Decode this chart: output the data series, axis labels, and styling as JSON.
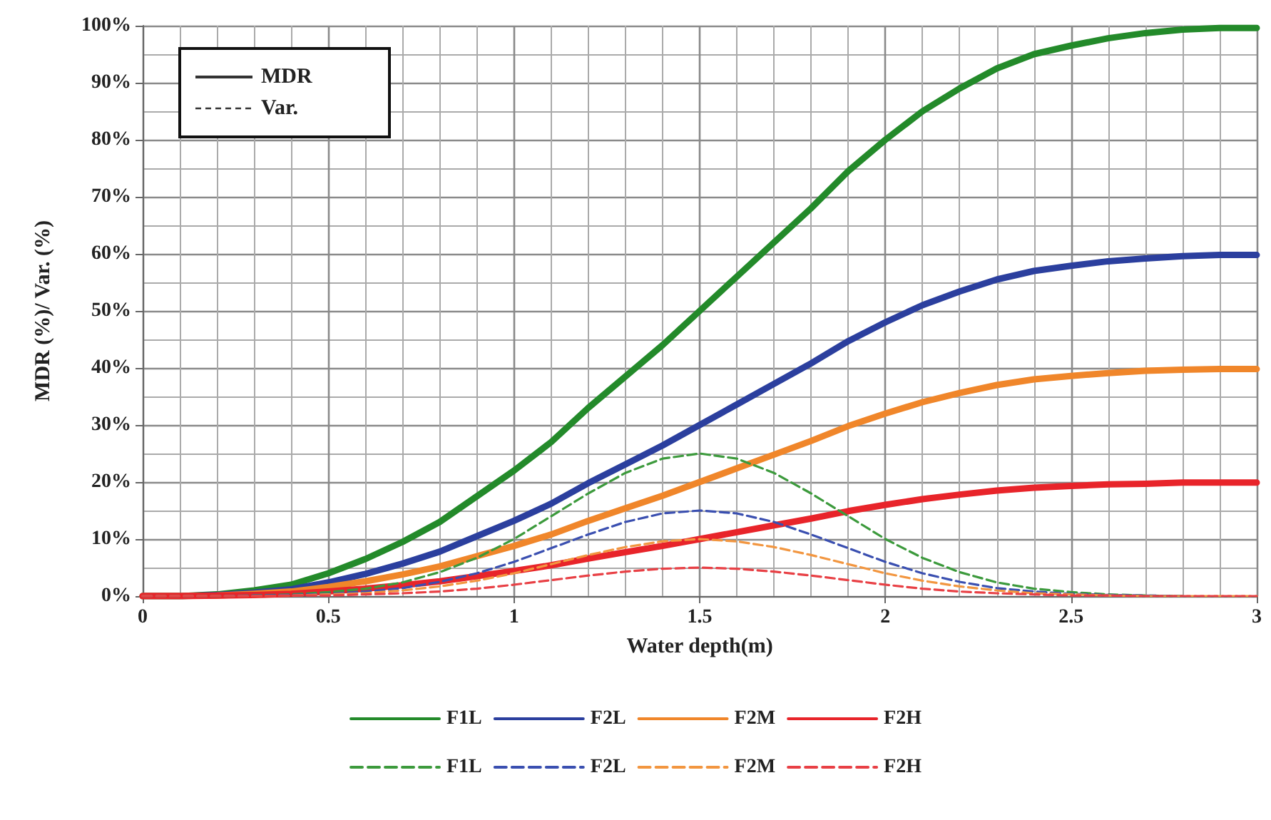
{
  "chart_data": {
    "type": "line",
    "xlabel": "Water depth(m)",
    "ylabel": "MDR (%)/ Var. (%)",
    "annotations": [
      "MDR",
      "Var."
    ],
    "x": [
      0,
      0.1,
      0.2,
      0.3,
      0.4,
      0.5,
      0.6,
      0.7,
      0.8,
      0.9,
      1,
      1.1,
      1.2,
      1.3,
      1.4,
      1.5,
      1.6,
      1.7,
      1.8,
      1.9,
      2,
      2.1,
      2.2,
      2.3,
      2.4,
      2.5,
      2.6,
      2.7,
      2.8,
      2.9,
      3
    ],
    "series": [
      {
        "name": "F1L",
        "color": "#238a2a",
        "line_style": "solid",
        "values": [
          0,
          0,
          0.3,
          1,
          2,
          4,
          6.5,
          9.5,
          13,
          17.5,
          22,
          27,
          33,
          38.5,
          44,
          50,
          56,
          62,
          68,
          74.5,
          80,
          85,
          89,
          92.5,
          95,
          96.5,
          97.8,
          98.7,
          99.3,
          99.6,
          99.6
        ]
      },
      {
        "name": "F2L",
        "color": "#2b3f9e",
        "line_style": "solid",
        "values": [
          0,
          0,
          0.2,
          0.6,
          1.2,
          2.4,
          3.9,
          5.7,
          7.8,
          10.5,
          13.2,
          16.2,
          19.8,
          23.1,
          26.4,
          30,
          33.6,
          37.2,
          40.8,
          44.7,
          48,
          51,
          53.4,
          55.5,
          57,
          57.9,
          58.7,
          59.2,
          59.6,
          59.8,
          59.8
        ]
      },
      {
        "name": "F2M",
        "color": "#f0862a",
        "line_style": "solid",
        "values": [
          0,
          0,
          0.1,
          0.4,
          0.8,
          1.6,
          2.6,
          3.8,
          5.2,
          7,
          8.8,
          10.8,
          13.2,
          15.4,
          17.6,
          20,
          22.4,
          24.8,
          27.2,
          29.8,
          32,
          34,
          35.6,
          37,
          38,
          38.6,
          39.1,
          39.5,
          39.7,
          39.8,
          39.8
        ]
      },
      {
        "name": "F2H",
        "color": "#e8242a",
        "line_style": "solid",
        "values": [
          0,
          0,
          0.1,
          0.2,
          0.4,
          0.8,
          1.3,
          1.9,
          2.6,
          3.5,
          4.4,
          5.4,
          6.6,
          7.7,
          8.8,
          10,
          11.2,
          12.4,
          13.6,
          14.9,
          16,
          17,
          17.8,
          18.5,
          19,
          19.3,
          19.6,
          19.7,
          19.9,
          19.9,
          19.9
        ]
      },
      {
        "name": "F1L",
        "color": "#3c9a3c",
        "line_style": "dashed",
        "values": [
          0,
          0,
          0,
          0.1,
          0.3,
          0.7,
          1.3,
          2.4,
          4.2,
          6.7,
          10,
          14,
          18,
          21.6,
          24.1,
          25,
          24.1,
          21.6,
          18,
          14,
          10,
          6.7,
          4.2,
          2.4,
          1.3,
          0.7,
          0.3,
          0.1,
          0,
          null,
          null
        ]
      },
      {
        "name": "F2L",
        "color": "#3a4fb0",
        "line_style": "dashed",
        "values": [
          0,
          0,
          0,
          0.1,
          0.2,
          0.4,
          0.8,
          1.4,
          2.5,
          4,
          6,
          8.4,
          10.8,
          13,
          14.5,
          15,
          14.5,
          13,
          10.8,
          8.4,
          6,
          4,
          2.5,
          1.4,
          0.8,
          0.4,
          0.2,
          0.1,
          0,
          null,
          null
        ]
      },
      {
        "name": "F2M",
        "color": "#f29640",
        "line_style": "dashed",
        "values": [
          0,
          0,
          0,
          0,
          0.1,
          0.3,
          0.5,
          1,
          1.7,
          2.7,
          4,
          5.6,
          7.2,
          8.6,
          9.6,
          10,
          9.6,
          8.6,
          7.2,
          5.6,
          4,
          2.7,
          1.7,
          1,
          0.5,
          0.3,
          0.1,
          0,
          0,
          0,
          0
        ]
      },
      {
        "name": "F2H",
        "color": "#e84045",
        "line_style": "dashed",
        "values": [
          0,
          0,
          0,
          0,
          0.1,
          0.1,
          0.3,
          0.5,
          0.8,
          1.3,
          2,
          2.8,
          3.6,
          4.3,
          4.8,
          5,
          4.8,
          4.3,
          3.6,
          2.8,
          2,
          1.3,
          0.8,
          0.5,
          0.3,
          0.1,
          0.1,
          0,
          0,
          0,
          0
        ]
      }
    ],
    "xlim": [
      0,
      3
    ],
    "xticks": [
      0,
      0.5,
      1,
      1.5,
      2,
      2.5,
      3
    ],
    "ylim": [
      0,
      100
    ],
    "yticks": [
      {
        "value": 0,
        "label": "0%"
      },
      {
        "value": 10,
        "label": "10%"
      },
      {
        "value": 20,
        "label": "20%"
      },
      {
        "value": 30,
        "label": "30%"
      },
      {
        "value": 40,
        "label": "40%"
      },
      {
        "value": 50,
        "label": "50%"
      },
      {
        "value": 60,
        "label": "60%"
      },
      {
        "value": 70,
        "label": "70%"
      },
      {
        "value": 80,
        "label": "80%"
      },
      {
        "value": 90,
        "label": "90%"
      },
      {
        "value": 100,
        "label": "100%"
      }
    ],
    "grid": true,
    "legend": "bottom",
    "marker": "none"
  }
}
